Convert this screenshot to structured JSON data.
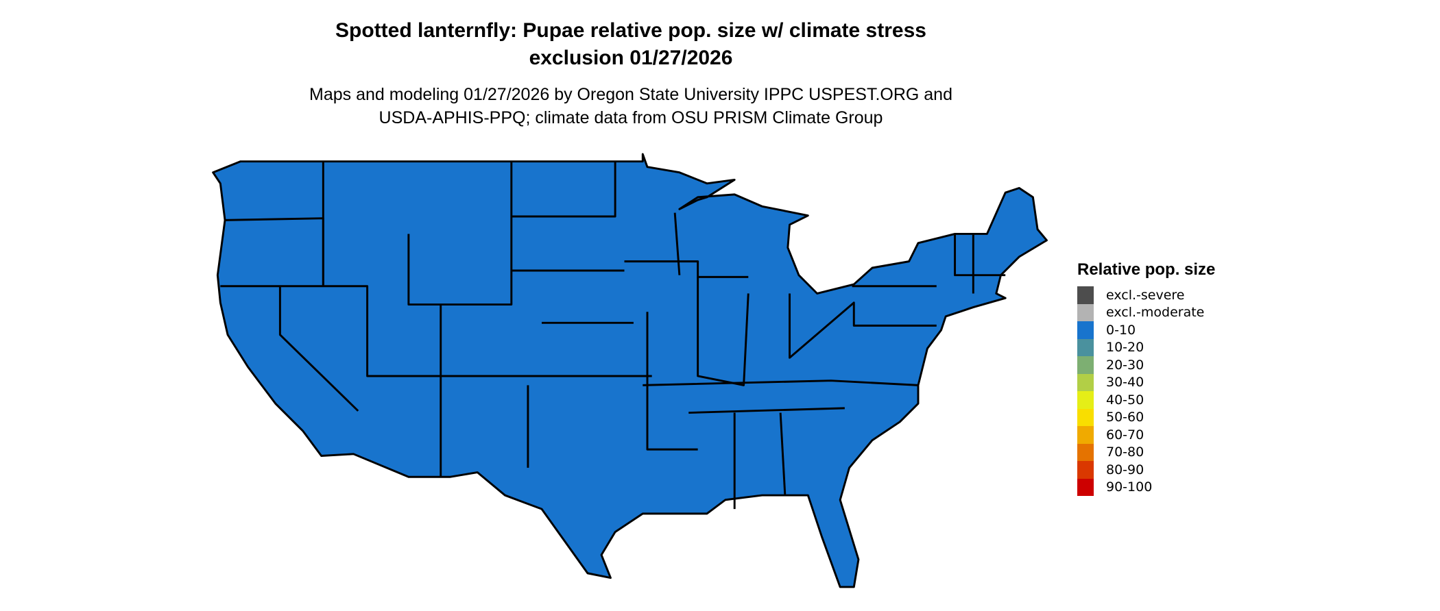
{
  "title_line1": "Spotted lanternfly: Pupae relative pop. size w/ climate stress",
  "title_line2": "exclusion 01/27/2026",
  "subtitle_line1": "Maps and modeling 01/27/2026 by Oregon State University IPPC USPEST.ORG and",
  "subtitle_line2": "USDA-APHIS-PPQ; climate data from OSU PRISM Climate Group",
  "map": {
    "region": "Contiguous United States",
    "fill_category": "0-10",
    "fill_color": "#1874CD",
    "border_color": "#000000"
  },
  "legend": {
    "title": "Relative pop. size",
    "items": [
      {
        "label": "excl.-severe",
        "color": "#4D4D4D"
      },
      {
        "label": "excl.-moderate",
        "color": "#B3B3B3"
      },
      {
        "label": "0-10",
        "color": "#1874CD"
      },
      {
        "label": "10-20",
        "color": "#4A919E"
      },
      {
        "label": "20-30",
        "color": "#7DAF72"
      },
      {
        "label": "30-40",
        "color": "#B2CF46"
      },
      {
        "label": "40-50",
        "color": "#E5EE17"
      },
      {
        "label": "50-60",
        "color": "#F9DE00"
      },
      {
        "label": "60-70",
        "color": "#F0AA00"
      },
      {
        "label": "70-80",
        "color": "#E57300"
      },
      {
        "label": "80-90",
        "color": "#DA3800"
      },
      {
        "label": "90-100",
        "color": "#CD0000"
      }
    ]
  }
}
